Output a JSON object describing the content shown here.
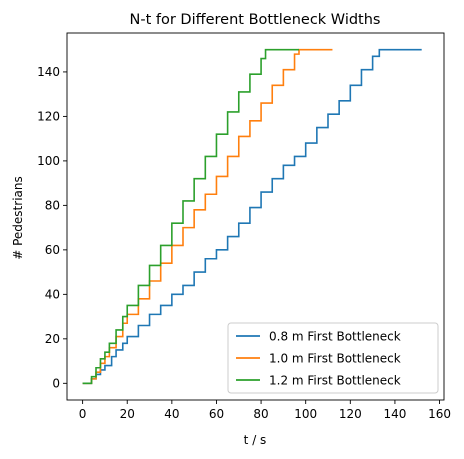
{
  "chart_data": {
    "type": "line",
    "title": "N-t for Different Bottleneck Widths",
    "xlabel": "t / s",
    "ylabel": "# Pedestrians",
    "xlim": [
      -7,
      162
    ],
    "ylim": [
      -7.5,
      157.5
    ],
    "xticks": [
      "0",
      "20",
      "40",
      "60",
      "80",
      "100",
      "120",
      "140",
      "160"
    ],
    "yticks": [
      "0",
      "20",
      "40",
      "60",
      "80",
      "100",
      "120",
      "140"
    ],
    "xtick_values": [
      0,
      20,
      40,
      60,
      80,
      100,
      120,
      140,
      160
    ],
    "ytick_values": [
      0,
      20,
      40,
      60,
      80,
      100,
      120,
      140
    ],
    "grid": false,
    "legend_position": "lower-right",
    "series": [
      {
        "name": "0.8 m First Bottleneck",
        "color": "#1f77b4",
        "x": [
          0,
          3,
          4,
          6,
          8,
          10,
          13,
          15,
          18,
          20,
          25,
          30,
          35,
          40,
          45,
          50,
          55,
          60,
          65,
          70,
          75,
          80,
          85,
          90,
          95,
          100,
          105,
          110,
          115,
          120,
          125,
          130,
          133,
          152
        ],
        "y": [
          0,
          0,
          2,
          4,
          6,
          8,
          12,
          15,
          18,
          21,
          26,
          31,
          35,
          40,
          44,
          50,
          56,
          60,
          66,
          72,
          79,
          86,
          92,
          98,
          102,
          108,
          115,
          121,
          127,
          134,
          141,
          147,
          150,
          150
        ]
      },
      {
        "name": "1.0 m First Bottleneck",
        "color": "#ff7f0e",
        "x": [
          0,
          3,
          4,
          6,
          8,
          10,
          12,
          15,
          18,
          20,
          25,
          30,
          35,
          40,
          45,
          50,
          55,
          60,
          65,
          70,
          75,
          80,
          85,
          90,
          95,
          97,
          112
        ],
        "y": [
          0,
          0,
          2,
          5,
          9,
          12,
          16,
          21,
          27,
          31,
          38,
          46,
          54,
          62,
          70,
          78,
          85,
          93,
          102,
          111,
          118,
          126,
          134,
          141,
          148,
          150,
          150
        ]
      },
      {
        "name": "1.2 m First Bottleneck",
        "color": "#2ca02c",
        "x": [
          0,
          3,
          4,
          6,
          8,
          10,
          12,
          15,
          18,
          20,
          25,
          30,
          35,
          40,
          45,
          50,
          55,
          60,
          65,
          70,
          75,
          80,
          82,
          97
        ],
        "y": [
          0,
          0,
          3,
          7,
          11,
          14,
          18,
          24,
          30,
          35,
          44,
          53,
          62,
          72,
          82,
          92,
          102,
          112,
          122,
          131,
          139,
          146,
          150,
          150
        ]
      }
    ]
  }
}
